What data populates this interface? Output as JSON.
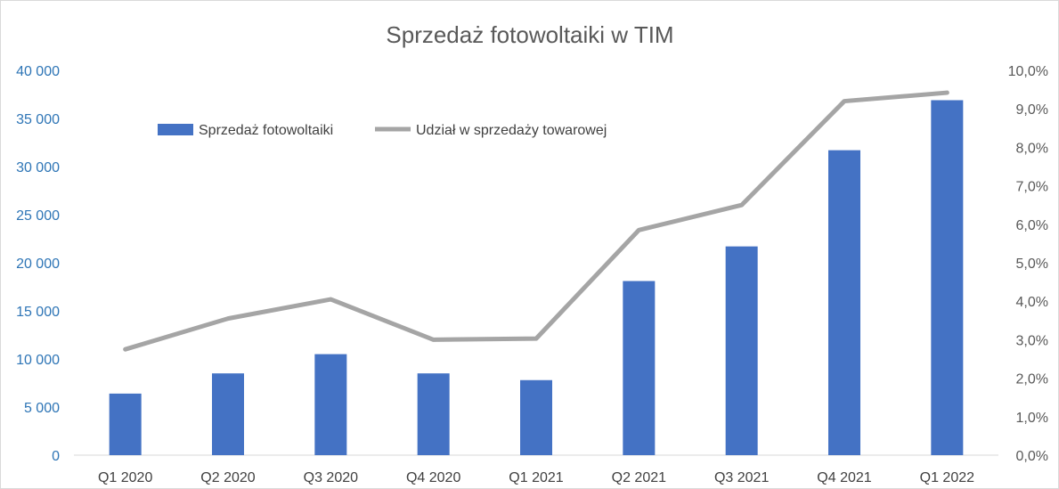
{
  "chart_data": {
    "type": "bar",
    "title": "Sprzedaż fotowoltaiki w TIM",
    "categories": [
      "Q1 2020",
      "Q2 2020",
      "Q3 2020",
      "Q4 2020",
      "Q1 2021",
      "Q2 2021",
      "Q3 2021",
      "Q4 2021",
      "Q1 2022"
    ],
    "series": [
      {
        "name": "Sprzedaż fotowoltaiki",
        "type": "bar",
        "axis": "left",
        "color": "#4472c4",
        "values": [
          6400,
          8500,
          10500,
          8500,
          7800,
          18100,
          21700,
          31700,
          36900
        ]
      },
      {
        "name": "Udział w sprzedaży towarowej",
        "type": "line",
        "axis": "right",
        "color": "#a5a5a5",
        "values": [
          2.75,
          3.55,
          4.05,
          3.0,
          3.03,
          5.85,
          6.5,
          9.2,
          9.42
        ]
      }
    ],
    "y_left": {
      "ylim": [
        0,
        40000
      ],
      "ticks": [
        "0",
        "5 000",
        "10 000",
        "15 000",
        "20 000",
        "25 000",
        "30 000",
        "35 000",
        "40 000"
      ]
    },
    "y_right": {
      "ylim": [
        0,
        10
      ],
      "ticks": [
        "0,0%",
        "1,0%",
        "2,0%",
        "3,0%",
        "4,0%",
        "5,0%",
        "6,0%",
        "7,0%",
        "8,0%",
        "9,0%",
        "10,0%"
      ]
    },
    "legend": "top-left",
    "grid": false
  }
}
